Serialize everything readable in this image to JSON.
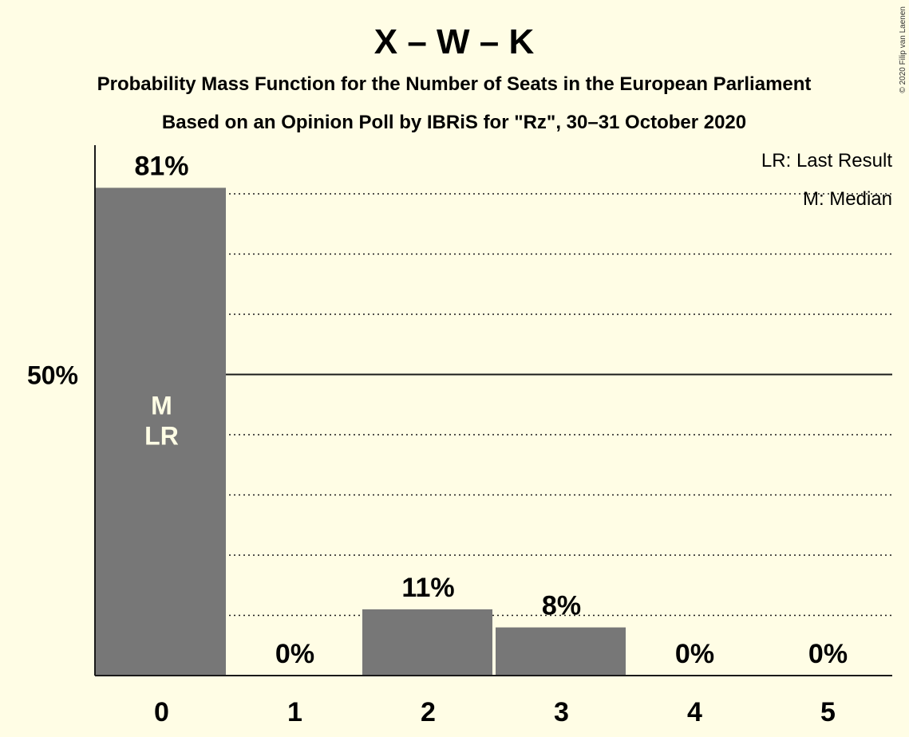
{
  "chart_data": {
    "type": "bar",
    "title": "X – W – K",
    "subtitle": "Probability Mass Function for the Number of Seats in the European Parliament",
    "source_line": "Based on an Opinion Poll by IBRiS for \"Rz\", 30–31 October 2020",
    "copyright": "© 2020 Filip van Laenen",
    "categories": [
      "0",
      "1",
      "2",
      "3",
      "4",
      "5"
    ],
    "values": [
      81,
      0,
      11,
      8,
      0,
      0
    ],
    "value_labels": [
      "81%",
      "0%",
      "11%",
      "8%",
      "0%",
      "0%"
    ],
    "ylim": [
      0,
      88
    ],
    "y_tick_label": "50%",
    "y_tick_value": 50,
    "dotted_grid_values": [
      10,
      20,
      30,
      40,
      60,
      70,
      80
    ],
    "bar_annotations": {
      "category": "0",
      "lines": [
        "M",
        "LR"
      ]
    },
    "legend": [
      "LR: Last Result",
      "M: Median"
    ],
    "legend_position": "top-right",
    "colors": {
      "background": "#FFFDE5",
      "bar": "#777777",
      "text": "#1a1a1a",
      "bar_text": "#FFFDE5"
    }
  }
}
